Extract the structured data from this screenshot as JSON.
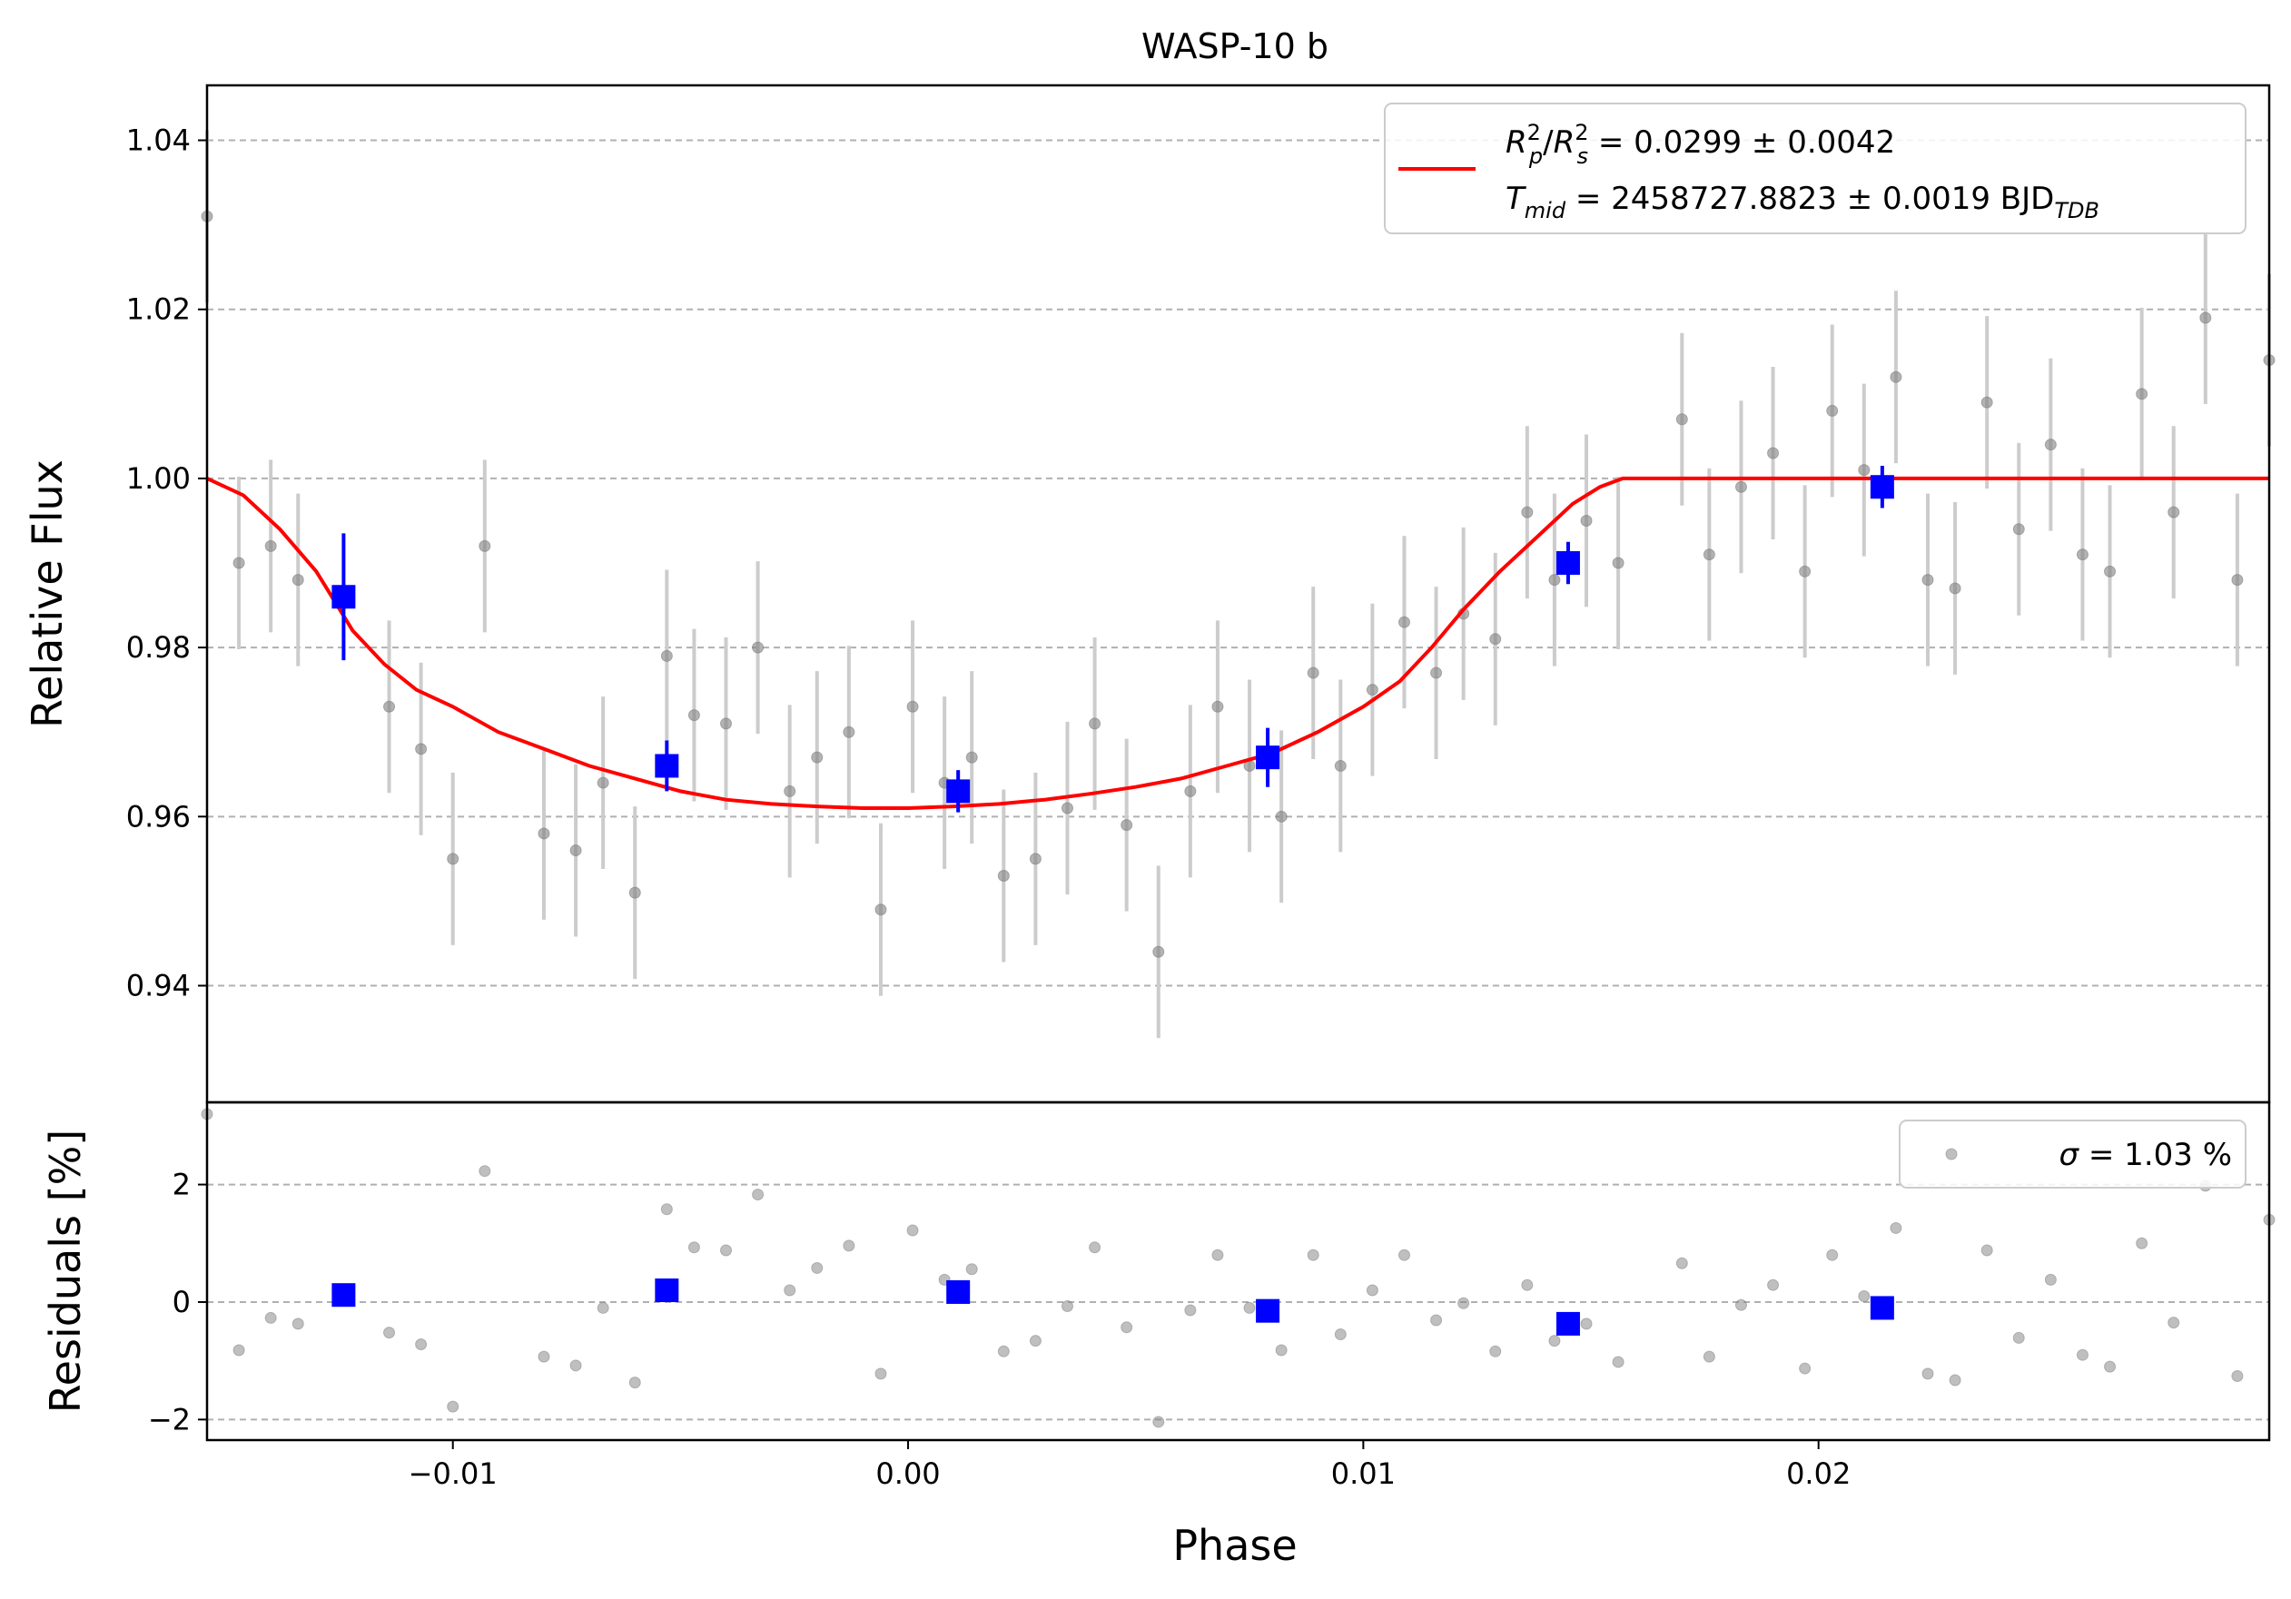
{
  "chart_data": {
    "type": "scatter",
    "title": "WASP-10 b",
    "xlabel": "Phase",
    "top_panel": {
      "ylabel": "Relative Flux",
      "xlim": [
        -0.0154,
        0.0299
      ],
      "ylim": [
        0.9262,
        1.0465
      ],
      "yticks": [
        "0.94",
        "0.96",
        "0.98",
        "1.00",
        "1.02",
        "1.04"
      ],
      "ytick_values": [
        0.94,
        0.96,
        0.98,
        1.0,
        1.02,
        1.04
      ],
      "grid": true,
      "legend_position": "top-right",
      "legend_line1": "R_p^2/R_s^2 = 0.0299 ± 0.0042",
      "legend_line2": "T_mid = 2458727.8823 ± 0.0019 BJD_TDB",
      "legend_rp_main": "R",
      "legend_rp_sub": "p",
      "legend_rp_sup": "2",
      "legend_rs_main": "R",
      "legend_rs_sub": "s",
      "legend_rs_sup": "2",
      "legend_rpsr_value": " = 0.0299 ± 0.0042",
      "legend_tmid_main": "T",
      "legend_tmid_sub": "mid",
      "legend_tmid_value": " = 2458727.8823 ± 0.0019 BJD",
      "legend_tmid_unit_sub": "TDB",
      "error_bar_halfwidth": 0.0102,
      "model_color": "#ff0000",
      "data_color": "#808080",
      "binned_color": "#0000ff",
      "data": [
        [
          -0.0154,
          1.031
        ],
        [
          -0.0147,
          0.99
        ],
        [
          -0.014,
          0.992
        ],
        [
          -0.0134,
          0.988
        ],
        [
          -0.0114,
          0.973
        ],
        [
          -0.0107,
          0.968
        ],
        [
          -0.01,
          0.955
        ],
        [
          -0.0093,
          0.992
        ],
        [
          -0.008,
          0.958
        ],
        [
          -0.0073,
          0.956
        ],
        [
          -0.0067,
          0.964
        ],
        [
          -0.006,
          0.951
        ],
        [
          -0.0053,
          0.979
        ],
        [
          -0.0047,
          0.972
        ],
        [
          -0.004,
          0.971
        ],
        [
          -0.0033,
          0.98
        ],
        [
          -0.0026,
          0.963
        ],
        [
          -0.002,
          0.967
        ],
        [
          -0.0013,
          0.97
        ],
        [
          -0.0006,
          0.949
        ],
        [
          0.0001,
          0.973
        ],
        [
          0.0008,
          0.964
        ],
        [
          0.0014,
          0.967
        ],
        [
          0.0021,
          0.953
        ],
        [
          0.0028,
          0.955
        ],
        [
          0.0035,
          0.961
        ],
        [
          0.0041,
          0.971
        ],
        [
          0.0048,
          0.959
        ],
        [
          0.0055,
          0.944
        ],
        [
          0.0062,
          0.963
        ],
        [
          0.0068,
          0.973
        ],
        [
          0.0075,
          0.966
        ],
        [
          0.0082,
          0.96
        ],
        [
          0.0089,
          0.977
        ],
        [
          0.0095,
          0.966
        ],
        [
          0.0102,
          0.975
        ],
        [
          0.0109,
          0.983
        ],
        [
          0.0116,
          0.977
        ],
        [
          0.0122,
          0.984
        ],
        [
          0.0129,
          0.981
        ],
        [
          0.0136,
          0.996
        ],
        [
          0.0142,
          0.988
        ],
        [
          0.0149,
          0.995
        ],
        [
          0.0156,
          0.99
        ],
        [
          0.017,
          1.007
        ],
        [
          0.0176,
          0.991
        ],
        [
          0.0183,
          0.999
        ],
        [
          0.019,
          1.003
        ],
        [
          0.0197,
          0.989
        ],
        [
          0.0203,
          1.008
        ],
        [
          0.021,
          1.001
        ],
        [
          0.0217,
          1.012
        ],
        [
          0.0224,
          0.988
        ],
        [
          0.023,
          0.987
        ],
        [
          0.0237,
          1.009
        ],
        [
          0.0244,
          0.994
        ],
        [
          0.0251,
          1.004
        ],
        [
          0.0258,
          0.991
        ],
        [
          0.0264,
          0.989
        ],
        [
          0.0271,
          1.01
        ],
        [
          0.0278,
          0.996
        ],
        [
          0.0285,
          1.019
        ],
        [
          0.0292,
          0.988
        ],
        [
          0.0299,
          1.014
        ]
      ],
      "binned": [
        [
          -0.0124,
          0.986,
          0.0075
        ],
        [
          -0.0053,
          0.966,
          0.003
        ],
        [
          0.0011,
          0.963,
          0.0025
        ],
        [
          0.0079,
          0.967,
          0.0035
        ],
        [
          0.0145,
          0.99,
          0.0025
        ],
        [
          0.0214,
          0.999,
          0.0025
        ]
      ],
      "model": [
        [
          -0.0154,
          1.0
        ],
        [
          -0.0146,
          0.998
        ],
        [
          -0.0138,
          0.994
        ],
        [
          -0.013,
          0.989
        ],
        [
          -0.0122,
          0.982
        ],
        [
          -0.0115,
          0.978
        ],
        [
          -0.0108,
          0.975
        ],
        [
          -0.01,
          0.973
        ],
        [
          -0.009,
          0.97
        ],
        [
          -0.008,
          0.968
        ],
        [
          -0.007,
          0.966
        ],
        [
          -0.006,
          0.9645
        ],
        [
          -0.005,
          0.963
        ],
        [
          -0.004,
          0.962
        ],
        [
          -0.003,
          0.9615
        ],
        [
          -0.002,
          0.9612
        ],
        [
          -0.001,
          0.961
        ],
        [
          0.0,
          0.961
        ],
        [
          0.001,
          0.9612
        ],
        [
          0.002,
          0.9615
        ],
        [
          0.003,
          0.962
        ],
        [
          0.004,
          0.9627
        ],
        [
          0.005,
          0.9635
        ],
        [
          0.006,
          0.9645
        ],
        [
          0.007,
          0.966
        ],
        [
          0.008,
          0.9675
        ],
        [
          0.009,
          0.97
        ],
        [
          0.01,
          0.973
        ],
        [
          0.0108,
          0.976
        ],
        [
          0.0115,
          0.98
        ],
        [
          0.0122,
          0.9845
        ],
        [
          0.013,
          0.989
        ],
        [
          0.0138,
          0.993
        ],
        [
          0.0146,
          0.997
        ],
        [
          0.0152,
          0.999
        ],
        [
          0.0157,
          1.0
        ],
        [
          0.0299,
          1.0
        ]
      ]
    },
    "bottom_panel": {
      "ylabel": "Residuals [%]",
      "ylim": [
        -2.35,
        3.4
      ],
      "yticks": [
        "−2",
        "0",
        "2"
      ],
      "ytick_values": [
        -2,
        0,
        2
      ],
      "xticks": [
        "−0.01",
        "0.00",
        "0.01",
        "0.02"
      ],
      "xtick_values": [
        -0.01,
        0.0,
        0.01,
        0.02
      ],
      "legend_sigma_symbol": "σ",
      "legend_sigma_value": " = 1.03 %",
      "legend_position": "top-right",
      "residuals": [
        [
          -0.0154,
          3.2
        ],
        [
          -0.0147,
          -0.82
        ],
        [
          -0.014,
          -0.27
        ],
        [
          -0.0134,
          -0.37
        ],
        [
          -0.0114,
          -0.52
        ],
        [
          -0.0107,
          -0.72
        ],
        [
          -0.01,
          -1.78
        ],
        [
          -0.0093,
          2.23
        ],
        [
          -0.008,
          -0.93
        ],
        [
          -0.0073,
          -1.08
        ],
        [
          -0.0067,
          -0.1
        ],
        [
          -0.006,
          -1.37
        ],
        [
          -0.0053,
          1.58
        ],
        [
          -0.0047,
          0.93
        ],
        [
          -0.004,
          0.88
        ],
        [
          -0.0033,
          1.83
        ],
        [
          -0.0026,
          0.2
        ],
        [
          -0.002,
          0.58
        ],
        [
          -0.0013,
          0.96
        ],
        [
          -0.0006,
          -1.22
        ],
        [
          0.0001,
          1.22
        ],
        [
          0.0008,
          0.38
        ],
        [
          0.0014,
          0.56
        ],
        [
          0.0021,
          -0.84
        ],
        [
          0.0028,
          -0.66
        ],
        [
          0.0035,
          -0.07
        ],
        [
          0.0041,
          0.93
        ],
        [
          0.0048,
          -0.43
        ],
        [
          0.0055,
          -2.04
        ],
        [
          0.0062,
          -0.14
        ],
        [
          0.0068,
          0.8
        ],
        [
          0.0075,
          -0.1
        ],
        [
          0.0082,
          -0.82
        ],
        [
          0.0089,
          0.8
        ],
        [
          0.0095,
          -0.55
        ],
        [
          0.0102,
          0.2
        ],
        [
          0.0109,
          0.8
        ],
        [
          0.0116,
          -0.31
        ],
        [
          0.0122,
          -0.02
        ],
        [
          0.0129,
          -0.84
        ],
        [
          0.0136,
          0.29
        ],
        [
          0.0142,
          -0.66
        ],
        [
          0.0149,
          -0.37
        ],
        [
          0.0156,
          -1.02
        ],
        [
          0.017,
          0.66
        ],
        [
          0.0176,
          -0.93
        ],
        [
          0.0183,
          -0.05
        ],
        [
          0.019,
          0.29
        ],
        [
          0.0197,
          -1.13
        ],
        [
          0.0203,
          0.8
        ],
        [
          0.021,
          0.1
        ],
        [
          0.0217,
          1.26
        ],
        [
          0.0224,
          -1.22
        ],
        [
          0.023,
          -1.33
        ],
        [
          0.0237,
          0.88
        ],
        [
          0.0244,
          -0.61
        ],
        [
          0.0251,
          0.38
        ],
        [
          0.0258,
          -0.9
        ],
        [
          0.0264,
          -1.1
        ],
        [
          0.0271,
          1.0
        ],
        [
          0.0278,
          -0.35
        ],
        [
          0.0285,
          1.98
        ],
        [
          0.0292,
          -1.26
        ],
        [
          0.0299,
          1.4
        ]
      ],
      "binned": [
        [
          -0.0124,
          0.12
        ],
        [
          -0.0053,
          0.2
        ],
        [
          0.0011,
          0.17
        ],
        [
          0.0079,
          -0.15
        ],
        [
          0.0145,
          -0.37
        ],
        [
          0.0214,
          -0.1
        ]
      ]
    }
  }
}
